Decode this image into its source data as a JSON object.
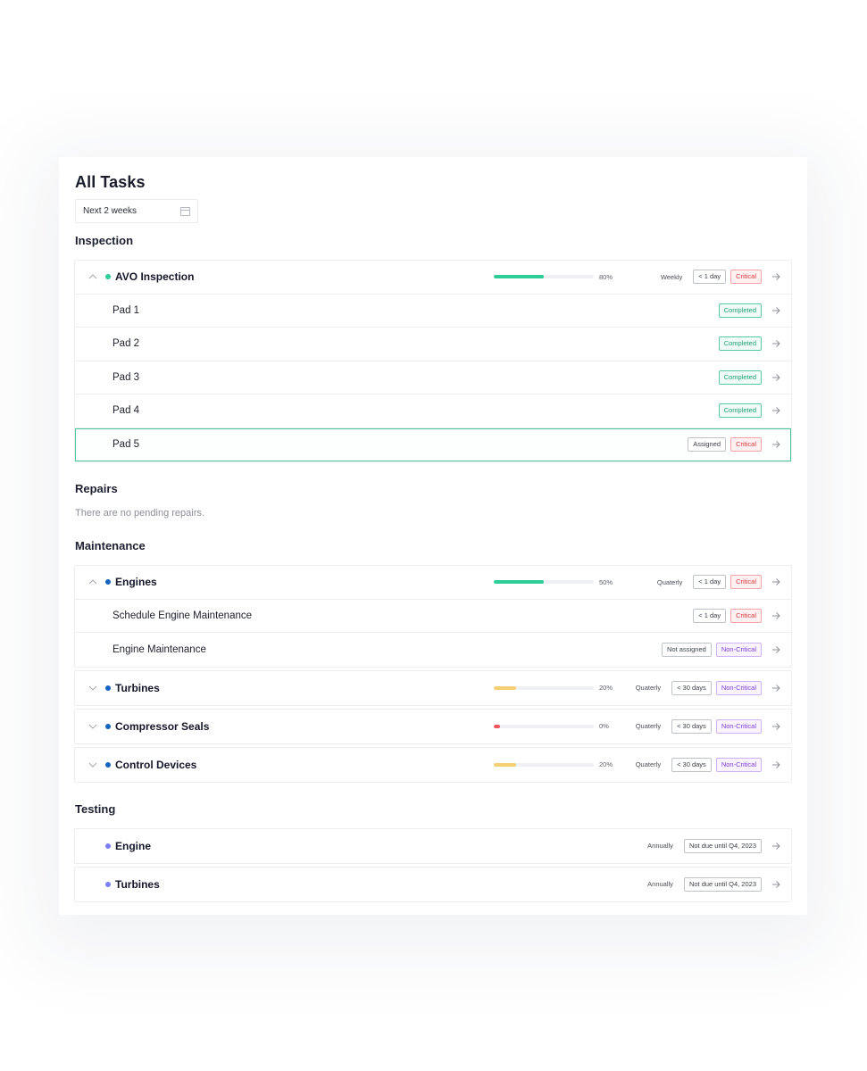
{
  "title": "All Tasks",
  "date_filter": {
    "value": "Next 2 weeks",
    "icon": "calendar-icon"
  },
  "colors": {
    "green": "#2ecc96",
    "yellow": "#f6cf73",
    "red": "#f0555c",
    "blue": "#1565c0",
    "purple": "#7b7ff5"
  },
  "sections": {
    "inspection": {
      "title": "Inspection",
      "group": {
        "label": "AVO Inspection",
        "dot_color": "#2ecc96",
        "progress": 80,
        "progress_label": "80%",
        "progress_color": "#2ecc96",
        "frequency": "Weekly",
        "due": "< 1 day",
        "priority": "Critical",
        "children": [
          {
            "label": "Pad 1",
            "status": "Completed"
          },
          {
            "label": "Pad 2",
            "status": "Completed"
          },
          {
            "label": "Pad 3",
            "status": "Completed"
          },
          {
            "label": "Pad 4",
            "status": "Completed"
          },
          {
            "label": "Pad 5",
            "status": "Assigned",
            "priority": "Critical"
          }
        ]
      }
    },
    "repairs": {
      "title": "Repairs",
      "empty": "There are no pending repairs."
    },
    "maintenance": {
      "title": "Maintenance",
      "engines": {
        "label": "Engines",
        "progress": 50,
        "progress_label": "50%",
        "frequency": "Quaterly",
        "due": "< 1 day",
        "priority": "Critical",
        "children": [
          {
            "label": "Schedule Engine Maintenance",
            "due": "< 1 day",
            "priority": "Critical"
          },
          {
            "label": "Engine Maintenance",
            "status": "Not assigned",
            "priority": "Non-Critical"
          }
        ]
      },
      "turbines": {
        "label": "Turbines",
        "progress": 20,
        "progress_label": "20%",
        "frequency": "Quaterly",
        "due": "< 30 days",
        "priority": "Non-Critical"
      },
      "compressor": {
        "label": "Compressor Seals",
        "progress": 0,
        "progress_label": "0%",
        "frequency": "Quaterly",
        "due": "< 30 days",
        "priority": "Non-Critical"
      },
      "control": {
        "label": "Control Devices",
        "progress": 20,
        "progress_label": "20%",
        "frequency": "Quaterly",
        "due": "< 30 days",
        "priority": "Non-Critical"
      }
    },
    "testing": {
      "title": "Testing",
      "items": [
        {
          "label": "Engine",
          "frequency": "Annually",
          "due": "Not due until Q4, 2023"
        },
        {
          "label": "Turbines",
          "frequency": "Annually",
          "due": "Not due until Q4, 2023"
        }
      ]
    }
  }
}
